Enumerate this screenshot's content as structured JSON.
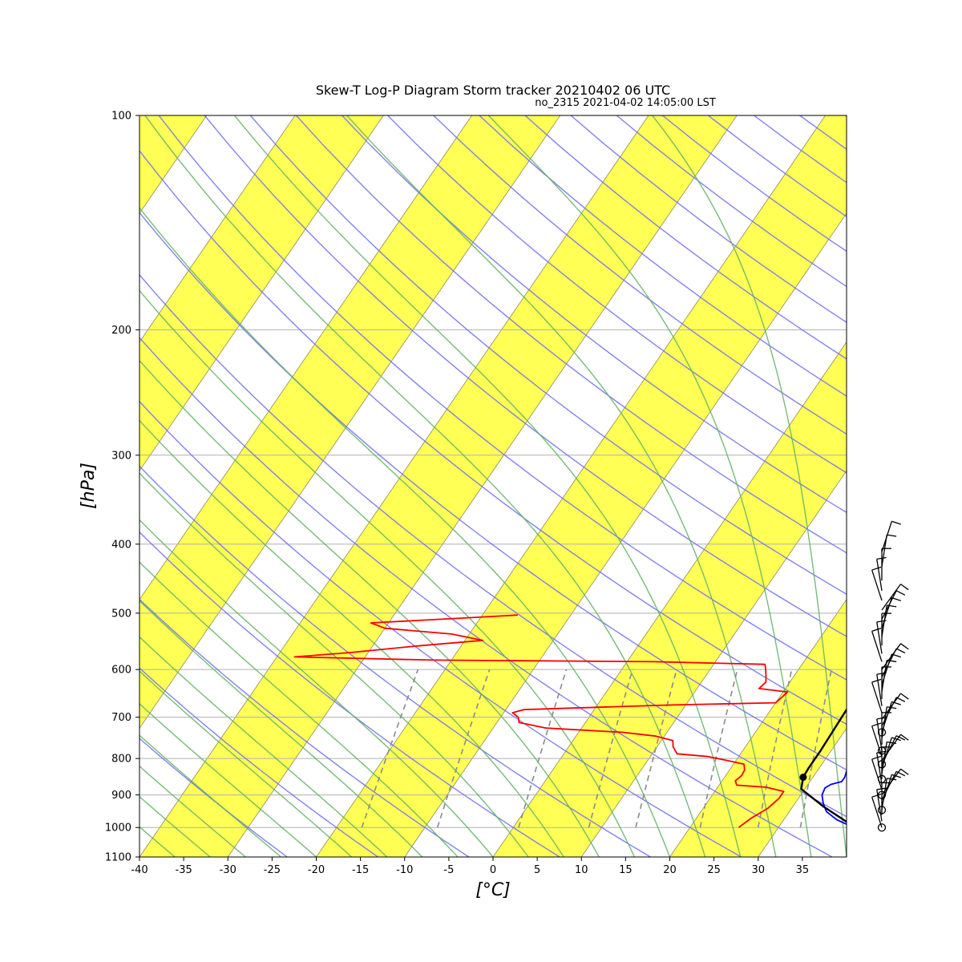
{
  "chart_data": {
    "type": "line",
    "title": "Skew-T Log-P Diagram Storm tracker 20210402 06 UTC",
    "subtitle": "no_2315 2021-04-02 14:05:00 LST",
    "xlabel": "[°C]",
    "ylabel": "[hPa]",
    "xlim": [
      -40,
      40
    ],
    "ylim": [
      1100,
      100
    ],
    "y_scale": "log",
    "x_ticks": [
      -40,
      -35,
      -30,
      -25,
      -20,
      -15,
      -10,
      -5,
      0,
      5,
      10,
      15,
      20,
      25,
      30,
      35
    ],
    "y_ticks": [
      100,
      200,
      300,
      400,
      500,
      600,
      700,
      800,
      900,
      1000,
      1100
    ],
    "grid": true,
    "background": "alternating yellow isotherm bands",
    "colors": {
      "band": "#ffff4d",
      "dry_adiabat": "#6c6cf0",
      "moist_adiabat": "#5fb05f",
      "mixing_ratio": "#8a8a8a",
      "temperature": "#0000ff",
      "dewpoint": "#ff0000",
      "parcel": "#000000"
    },
    "series": [
      {
        "name": "Temperature",
        "points": [
          [
            38.5,
            1000
          ],
          [
            36,
            975
          ],
          [
            34.2,
            950
          ],
          [
            33.2,
            925
          ],
          [
            32.4,
            900
          ],
          [
            32.2,
            880
          ],
          [
            32.6,
            870
          ],
          [
            33.6,
            862
          ],
          [
            33.6,
            850
          ],
          [
            33.2,
            825
          ],
          [
            32.5,
            800
          ],
          [
            32,
            780
          ],
          [
            31.3,
            760
          ],
          [
            31,
            745
          ],
          [
            31.7,
            735
          ],
          [
            32.4,
            720
          ],
          [
            32.2,
            700
          ],
          [
            31.5,
            680
          ],
          [
            30.5,
            660
          ],
          [
            29.6,
            640
          ],
          [
            29,
            620
          ],
          [
            28.2,
            600
          ],
          [
            27.4,
            585
          ],
          [
            27.2,
            570
          ],
          [
            27.5,
            555
          ],
          [
            27,
            540
          ],
          [
            26.6,
            520
          ],
          [
            26.6,
            505
          ],
          [
            26.2,
            490
          ],
          [
            26.3,
            475
          ],
          [
            26,
            460
          ],
          [
            25.6,
            445
          ],
          [
            25.6,
            430
          ],
          [
            25.2,
            415
          ],
          [
            25,
            405
          ]
        ]
      },
      {
        "name": "Dewpoint",
        "points": [
          [
            25.5,
            1000
          ],
          [
            26.2,
            970
          ],
          [
            27.3,
            940
          ],
          [
            27.8,
            910
          ],
          [
            27.8,
            890
          ],
          [
            25.5,
            878
          ],
          [
            22,
            872
          ],
          [
            21.5,
            860
          ],
          [
            21.8,
            845
          ],
          [
            21.7,
            830
          ],
          [
            21.2,
            815
          ],
          [
            18.5,
            803
          ],
          [
            16.5,
            795
          ],
          [
            12.8,
            788
          ],
          [
            11.8,
            770
          ],
          [
            11.3,
            755
          ],
          [
            9,
            744
          ],
          [
            5,
            735
          ],
          [
            -4,
            725
          ],
          [
            -7.5,
            712
          ],
          [
            -8,
            700
          ],
          [
            -9,
            690
          ],
          [
            -8,
            683
          ],
          [
            0,
            678
          ],
          [
            8,
            673
          ],
          [
            20,
            668
          ],
          [
            20.3,
            655
          ],
          [
            20.5,
            645
          ],
          [
            17,
            638
          ],
          [
            17.3,
            625
          ],
          [
            16.8,
            612
          ],
          [
            16.2,
            598
          ],
          [
            15.8,
            590
          ],
          [
            3,
            585
          ],
          [
            -22,
            582
          ],
          [
            -38,
            576
          ],
          [
            -32,
            568
          ],
          [
            -25,
            556
          ],
          [
            -18,
            546
          ],
          [
            -22,
            535
          ],
          [
            -30,
            525
          ],
          [
            -32,
            516
          ],
          [
            -22,
            508
          ],
          [
            -16,
            503
          ]
        ]
      },
      {
        "name": "Parcel",
        "points": [
          [
            38.7,
            1000
          ],
          [
            33.5,
            935
          ],
          [
            29.6,
            883
          ],
          [
            28.9,
            850
          ],
          [
            28.8,
            825
          ],
          [
            28.8,
            780
          ],
          [
            28.7,
            740
          ],
          [
            28.6,
            700
          ],
          [
            28.5,
            660
          ],
          [
            28.4,
            620
          ],
          [
            28.4,
            600
          ],
          [
            28.2,
            570
          ],
          [
            28,
            540
          ],
          [
            27.8,
            510
          ],
          [
            27.4,
            480
          ],
          [
            27,
            450
          ],
          [
            26.6,
            425
          ],
          [
            26.2,
            405
          ]
        ]
      }
    ],
    "lcl": {
      "t": 28.9,
      "p": 850
    },
    "wind_barbs_hpa": [
      1000,
      980,
      960,
      945,
      930,
      915,
      900,
      885,
      870,
      855,
      840,
      825,
      815,
      805,
      795,
      780,
      765,
      750,
      735,
      720,
      705,
      690,
      675,
      660,
      645,
      630,
      615,
      600,
      585,
      570,
      555,
      540,
      525,
      510,
      495,
      480,
      465,
      450,
      430,
      410
    ]
  }
}
